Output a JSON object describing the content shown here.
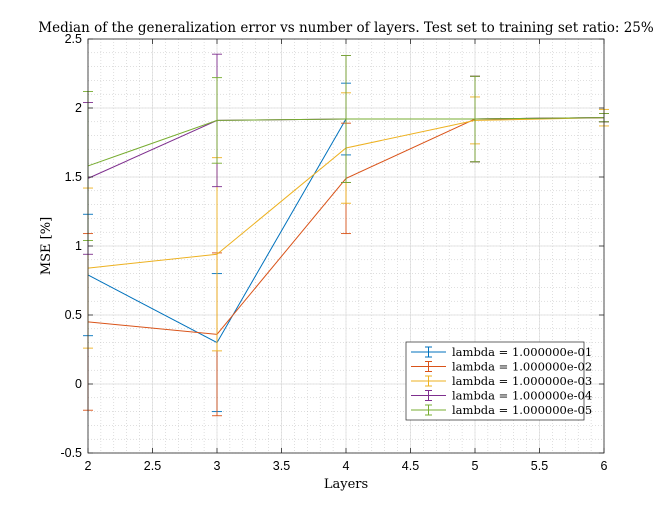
{
  "chart_data": {
    "type": "line",
    "title": "Median of the generalization error vs number of layers. Test set to training set ratio: 25%",
    "xlabel": "Layers",
    "ylabel": "MSE [%]",
    "xlim": [
      2,
      6
    ],
    "ylim": [
      -0.5,
      2.5
    ],
    "grid": true,
    "minor_grid": true,
    "legend_position": "bottom-right",
    "x": [
      2,
      3,
      4,
      5,
      6
    ],
    "x_tick_labels": [
      "2",
      "2.5",
      "3",
      "3.5",
      "4",
      "4.5",
      "5",
      "5.5",
      "6"
    ],
    "y_tick_labels": [
      "-0.5",
      "0",
      "0.5",
      "1",
      "1.5",
      "2",
      "2.5"
    ],
    "series": [
      {
        "name": "lambda = 1.000000e-01",
        "color": "#0072bd",
        "values": [
          0.79,
          0.3,
          1.92,
          1.92,
          1.93
        ],
        "err_low": [
          0.44,
          0.5,
          0.26,
          0.31,
          0.03
        ],
        "err_high": [
          0.44,
          0.5,
          0.26,
          0.31,
          0.03
        ]
      },
      {
        "name": "lambda = 1.000000e-02",
        "color": "#d95319",
        "values": [
          0.45,
          0.36,
          1.49,
          1.92,
          1.93
        ],
        "err_low": [
          0.64,
          0.59,
          0.4,
          0.31,
          0.03
        ],
        "err_high": [
          0.64,
          0.59,
          0.4,
          0.31,
          0.03
        ]
      },
      {
        "name": "lambda = 1.000000e-03",
        "color": "#edb120",
        "values": [
          0.84,
          0.94,
          1.71,
          1.91,
          1.93
        ],
        "err_low": [
          0.58,
          0.7,
          0.4,
          0.17,
          0.06
        ],
        "err_high": [
          0.58,
          0.7,
          0.4,
          0.17,
          0.06
        ]
      },
      {
        "name": "lambda = 1.000000e-04",
        "color": "#7e2f8e",
        "values": [
          1.49,
          1.91,
          1.92,
          1.92,
          1.93
        ],
        "err_low": [
          0.55,
          0.48,
          0.46,
          0.31,
          0.03
        ],
        "err_high": [
          0.55,
          0.48,
          0.46,
          0.31,
          0.03
        ]
      },
      {
        "name": "lambda = 1.000000e-05",
        "color": "#77ac30",
        "values": [
          1.58,
          1.91,
          1.92,
          1.92,
          1.93
        ],
        "err_low": [
          0.54,
          0.31,
          0.46,
          0.31,
          0.03
        ],
        "err_high": [
          0.54,
          0.31,
          0.46,
          0.31,
          0.03
        ]
      }
    ]
  }
}
